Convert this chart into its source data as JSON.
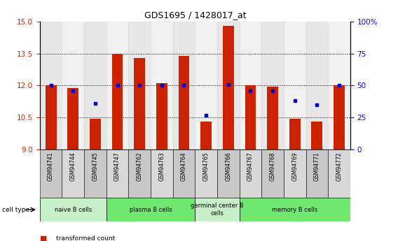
{
  "title": "GDS1695 / 1428017_at",
  "samples": [
    "GSM94741",
    "GSM94744",
    "GSM94745",
    "GSM94747",
    "GSM94762",
    "GSM94763",
    "GSM94764",
    "GSM94765",
    "GSM94766",
    "GSM94767",
    "GSM94768",
    "GSM94769",
    "GSM94771",
    "GSM94772"
  ],
  "transformed_count": [
    12.0,
    11.9,
    10.45,
    13.48,
    13.28,
    12.1,
    13.38,
    10.3,
    14.82,
    12.0,
    11.95,
    10.45,
    10.3,
    12.0
  ],
  "percentile_rank": [
    50,
    46,
    36,
    50,
    50,
    50,
    50,
    27,
    51,
    46,
    46,
    38,
    35,
    50
  ],
  "cell_types": [
    {
      "label": "naive B cells",
      "start": 0,
      "end": 3,
      "color": "#c8f0c8"
    },
    {
      "label": "plasma B cells",
      "start": 3,
      "end": 7,
      "color": "#70e870"
    },
    {
      "label": "germinal center B\ncells",
      "start": 7,
      "end": 9,
      "color": "#c8f0c8"
    },
    {
      "label": "memory B cells",
      "start": 9,
      "end": 14,
      "color": "#70e870"
    }
  ],
  "ylim_left": [
    9,
    15
  ],
  "ylim_right": [
    0,
    100
  ],
  "yticks_left": [
    9,
    10.5,
    12,
    13.5,
    15
  ],
  "yticks_right": [
    0,
    25,
    50,
    75,
    100
  ],
  "bar_color": "#cc2200",
  "dot_color": "#0000cc",
  "bar_width": 0.5
}
